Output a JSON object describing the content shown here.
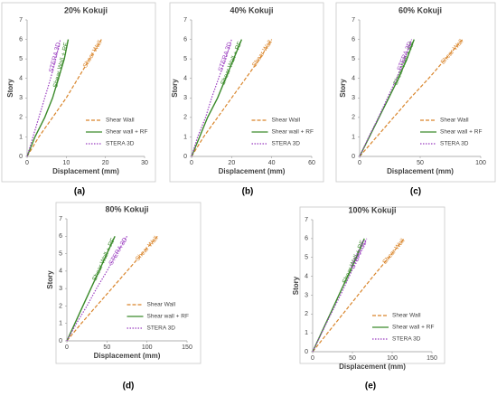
{
  "chart_data": [
    {
      "type": "line",
      "title": "20% Kokuji",
      "panel_label": "(a)",
      "xlabel": "Displacement (mm)",
      "ylabel": "Story",
      "xlim": [
        0,
        30
      ],
      "xticks": [
        0,
        10,
        20,
        30
      ],
      "ylim": [
        0,
        7
      ],
      "yticks": [
        0,
        1,
        2,
        3,
        4,
        5,
        6,
        7
      ],
      "legend": "lower right",
      "series": [
        {
          "name": "Shear Wall",
          "annotation": "Shear Wall",
          "color": "#d9852b",
          "dash": "dashed",
          "x": [
            0,
            3,
            6.5,
            10,
            13,
            16,
            19
          ],
          "values": [
            0,
            1,
            2,
            3,
            4,
            5,
            6
          ]
        },
        {
          "name": "Shear wall + RF",
          "annotation": "Shear Wall + RF",
          "color": "#3a8a2a",
          "dash": "solid",
          "x": [
            0,
            2,
            4.5,
            6.5,
            8,
            9.5,
            10.5
          ],
          "values": [
            0,
            1,
            2,
            3,
            4,
            5,
            6
          ]
        },
        {
          "name": "STERA 3D",
          "annotation": "STERA 3D",
          "color": "#9b3fc0",
          "dash": "dotted",
          "x": [
            0,
            1.5,
            3,
            4.5,
            6,
            7.3,
            8.5
          ],
          "values": [
            0,
            1,
            2,
            3,
            4,
            5,
            6
          ]
        }
      ]
    },
    {
      "type": "line",
      "title": "40% Kokuji",
      "panel_label": "(b)",
      "xlabel": "Displacement (mm)",
      "ylabel": "Story",
      "xlim": [
        0,
        60
      ],
      "xticks": [
        0,
        20,
        40,
        60
      ],
      "ylim": [
        0,
        7
      ],
      "yticks": [
        0,
        1,
        2,
        3,
        4,
        5,
        6,
        7
      ],
      "legend": "lower right",
      "series": [
        {
          "name": "Shear Wall",
          "annotation": "Shear Wall",
          "color": "#d9852b",
          "dash": "dashed",
          "x": [
            0,
            6,
            13,
            20,
            27,
            34,
            40
          ],
          "values": [
            0,
            1,
            2,
            3,
            4,
            5,
            6
          ]
        },
        {
          "name": "Shear wall + RF",
          "annotation": "Shear Wall + RF",
          "color": "#3a8a2a",
          "dash": "solid",
          "x": [
            0,
            4,
            8,
            13,
            17,
            21,
            25
          ],
          "values": [
            0,
            1,
            2,
            3,
            4,
            5,
            6
          ]
        },
        {
          "name": "STERA 3D",
          "annotation": "STERA 3D",
          "color": "#9b3fc0",
          "dash": "dotted",
          "x": [
            0,
            3,
            7,
            10,
            13.5,
            17,
            20
          ],
          "values": [
            0,
            1,
            2,
            3,
            4,
            5,
            6
          ]
        }
      ]
    },
    {
      "type": "line",
      "title": "60% Kokuji",
      "panel_label": "(c)",
      "xlabel": "Displacement (mm)",
      "ylabel": "Story",
      "xlim": [
        0,
        100
      ],
      "xticks": [
        0,
        50,
        100
      ],
      "ylim": [
        0,
        7
      ],
      "yticks": [
        0,
        1,
        2,
        3,
        4,
        5,
        6,
        7
      ],
      "legend": "lower right",
      "series": [
        {
          "name": "Shear Wall",
          "annotation": "Shear Wall",
          "color": "#d9852b",
          "dash": "dashed",
          "x": [
            0,
            14,
            28,
            42,
            57,
            71,
            85
          ],
          "values": [
            0,
            1,
            2,
            3,
            4,
            5,
            6
          ]
        },
        {
          "name": "Shear wall + RF",
          "annotation": "Shear Wall + RF",
          "color": "#3a8a2a",
          "dash": "solid",
          "x": [
            0,
            8,
            16,
            24,
            32,
            39,
            45
          ],
          "values": [
            0,
            1,
            2,
            3,
            4,
            5,
            6
          ]
        },
        {
          "name": "STERA 3D",
          "annotation": "STERA 3D",
          "color": "#9b3fc0",
          "dash": "dotted",
          "x": [
            0,
            7.5,
            15.5,
            23,
            30.5,
            37,
            43
          ],
          "values": [
            0,
            1,
            2,
            3,
            4,
            5,
            6
          ]
        }
      ]
    },
    {
      "type": "line",
      "title": "80% Kokuji",
      "panel_label": "(d)",
      "xlabel": "Displacement (mm)",
      "ylabel": "Story",
      "xlim": [
        0,
        150
      ],
      "xticks": [
        0,
        50,
        100,
        150
      ],
      "ylim": [
        0,
        7
      ],
      "yticks": [
        0,
        1,
        2,
        3,
        4,
        5,
        6,
        7
      ],
      "legend": "lower right",
      "series": [
        {
          "name": "Shear Wall",
          "annotation": "Shear Wall",
          "color": "#d9852b",
          "dash": "dashed",
          "x": [
            0,
            18,
            37,
            56,
            75,
            94,
            113
          ],
          "values": [
            0,
            1,
            2,
            3,
            4,
            5,
            6
          ]
        },
        {
          "name": "Shear wall + RF",
          "annotation": "Shear Wall + RF",
          "color": "#3a8a2a",
          "dash": "solid",
          "x": [
            0,
            10,
            20,
            30,
            40,
            50,
            60
          ],
          "values": [
            0,
            1,
            2,
            3,
            4,
            5,
            6
          ]
        },
        {
          "name": "STERA 3D",
          "annotation": "STERA 3D",
          "color": "#9b3fc0",
          "dash": "dotted",
          "x": [
            0,
            12,
            25,
            37,
            50,
            62,
            75
          ],
          "values": [
            0,
            1,
            2,
            3,
            4,
            5,
            6
          ]
        }
      ]
    },
    {
      "type": "line",
      "title": "100% Kokuji",
      "panel_label": "(e)",
      "xlabel": "Displacement (mm)",
      "ylabel": "Story",
      "xlim": [
        0,
        150
      ],
      "xticks": [
        0,
        50,
        100,
        150
      ],
      "ylim": [
        0,
        7
      ],
      "yticks": [
        0,
        1,
        2,
        3,
        4,
        5,
        6,
        7
      ],
      "legend": "lower right",
      "series": [
        {
          "name": "Shear Wall",
          "annotation": "Shear Wall",
          "color": "#d9852b",
          "dash": "dashed",
          "x": [
            0,
            19,
            38,
            57,
            76,
            96,
            115
          ],
          "values": [
            0,
            1,
            2,
            3,
            4,
            5,
            6
          ]
        },
        {
          "name": "Shear wall + RF",
          "annotation": "Shear Wall + RF",
          "color": "#3a8a2a",
          "dash": "solid",
          "x": [
            0,
            11,
            22,
            33,
            44,
            55,
            65
          ],
          "values": [
            0,
            1,
            2,
            3,
            4,
            5,
            6
          ]
        },
        {
          "name": "STERA 3D",
          "annotation": "STERA 3D",
          "color": "#9b3fc0",
          "dash": "dotted",
          "x": [
            0,
            11.5,
            23,
            35,
            46,
            57,
            68
          ],
          "values": [
            0,
            1,
            2,
            3,
            4,
            5,
            6
          ]
        }
      ]
    }
  ]
}
